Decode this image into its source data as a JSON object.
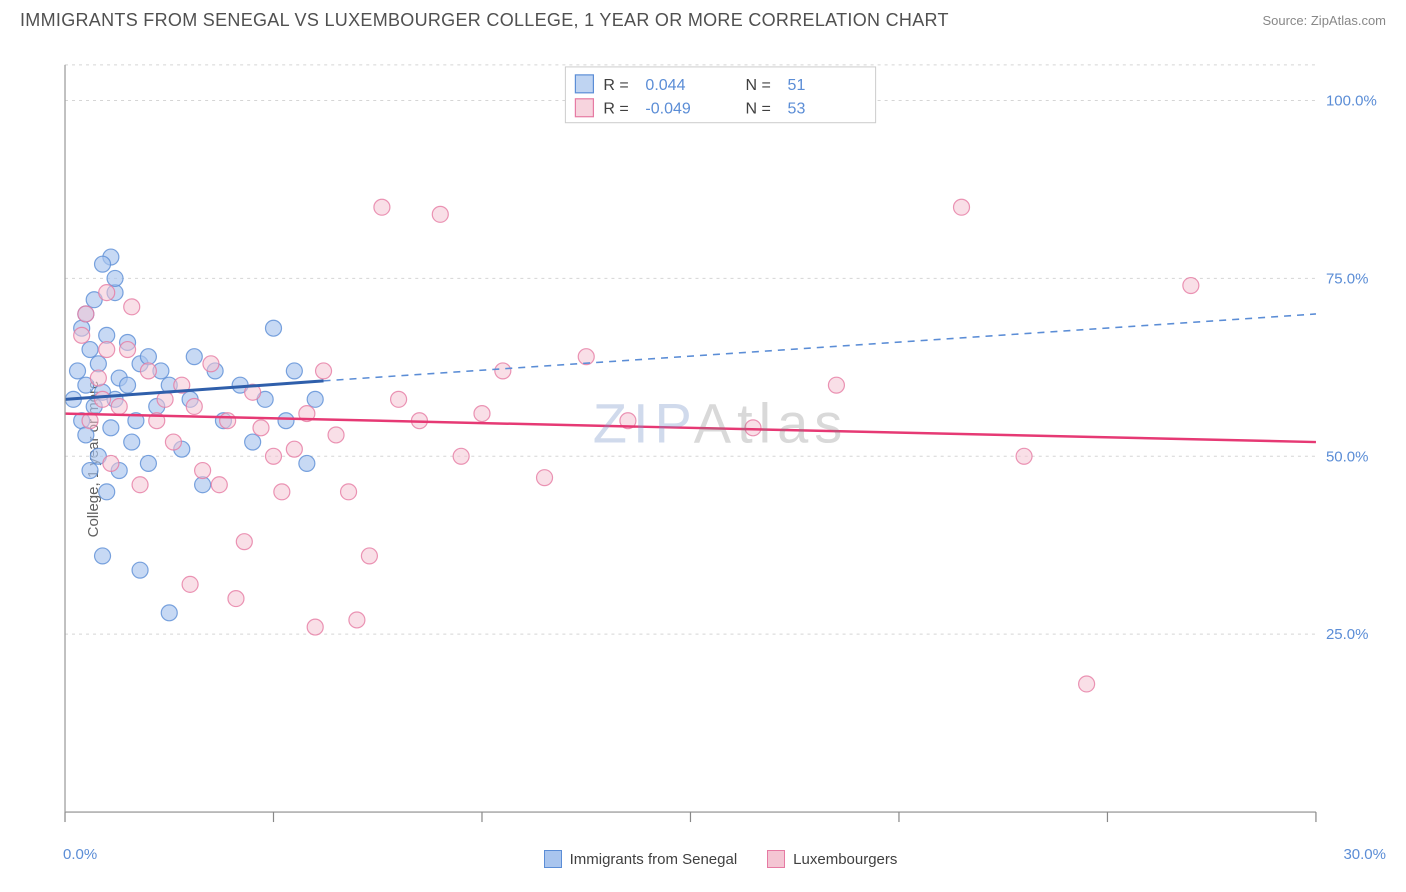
{
  "header": {
    "title": "IMMIGRANTS FROM SENEGAL VS LUXEMBOURGER COLLEGE, 1 YEAR OR MORE CORRELATION CHART",
    "source": "Source: ZipAtlas.com"
  },
  "chart": {
    "type": "scatter",
    "ylabel": "College, 1 year or more",
    "watermark": "ZIPAtlas",
    "background_color": "#ffffff",
    "grid_color": "#d5d5d5",
    "axis_color": "#a0a0a0",
    "tick_color": "#888888",
    "xlim": [
      0,
      30
    ],
    "ylim": [
      0,
      105
    ],
    "x_ticks": [
      0,
      5,
      10,
      15,
      20,
      25,
      30
    ],
    "y_gridlines": [
      25,
      50,
      75,
      100
    ],
    "x_labels": [
      {
        "value": 0,
        "label": "0.0%"
      },
      {
        "value": 30,
        "label": "30.0%"
      }
    ],
    "y_labels": [
      {
        "value": 25,
        "label": "25.0%"
      },
      {
        "value": 50,
        "label": "50.0%"
      },
      {
        "value": 75,
        "label": "75.0%"
      },
      {
        "value": 100,
        "label": "100.0%"
      }
    ],
    "axis_label_color": "#5b8dd6",
    "series": [
      {
        "name": "Immigrants from Senegal",
        "marker_fill": "#a9c5ee",
        "marker_stroke": "#5b8dd6",
        "marker_opacity": 0.65,
        "marker_radius": 8,
        "line_color": "#2f5fab",
        "line_dash_color": "#5b8dd6",
        "R": "0.044",
        "N": "51",
        "points": [
          [
            0.2,
            58
          ],
          [
            0.3,
            62
          ],
          [
            0.4,
            68
          ],
          [
            0.4,
            55
          ],
          [
            0.5,
            60
          ],
          [
            0.5,
            70
          ],
          [
            0.5,
            53
          ],
          [
            0.6,
            65
          ],
          [
            0.6,
            48
          ],
          [
            0.7,
            57
          ],
          [
            0.7,
            72
          ],
          [
            0.8,
            63
          ],
          [
            0.8,
            50
          ],
          [
            0.9,
            36
          ],
          [
            0.9,
            59
          ],
          [
            1.0,
            67
          ],
          [
            1.0,
            45
          ],
          [
            1.1,
            78
          ],
          [
            1.1,
            54
          ],
          [
            1.2,
            58
          ],
          [
            1.2,
            73
          ],
          [
            1.3,
            61
          ],
          [
            1.3,
            48
          ],
          [
            1.5,
            60
          ],
          [
            1.5,
            66
          ],
          [
            1.6,
            52
          ],
          [
            1.7,
            55
          ],
          [
            1.8,
            34
          ],
          [
            1.8,
            63
          ],
          [
            2.0,
            64
          ],
          [
            2.0,
            49
          ],
          [
            2.2,
            57
          ],
          [
            2.3,
            62
          ],
          [
            2.5,
            60
          ],
          [
            2.5,
            28
          ],
          [
            2.8,
            51
          ],
          [
            3.0,
            58
          ],
          [
            3.1,
            64
          ],
          [
            3.3,
            46
          ],
          [
            3.6,
            62
          ],
          [
            3.8,
            55
          ],
          [
            4.2,
            60
          ],
          [
            4.5,
            52
          ],
          [
            4.8,
            58
          ],
          [
            5.0,
            68
          ],
          [
            5.3,
            55
          ],
          [
            5.5,
            62
          ],
          [
            5.8,
            49
          ],
          [
            6.0,
            58
          ],
          [
            0.9,
            77
          ],
          [
            1.2,
            75
          ]
        ],
        "trend": {
          "x1": 0,
          "y1": 58,
          "x2": 6.2,
          "y2": 60.6,
          "dash_x2": 30,
          "dash_y2": 70
        }
      },
      {
        "name": "Luxembourgers",
        "marker_fill": "#f4c5d3",
        "marker_stroke": "#e67aa3",
        "marker_opacity": 0.55,
        "marker_radius": 8,
        "line_color": "#e63974",
        "R": "-0.049",
        "N": "53",
        "points": [
          [
            0.4,
            67
          ],
          [
            0.5,
            70
          ],
          [
            0.6,
            55
          ],
          [
            0.8,
            61
          ],
          [
            0.9,
            58
          ],
          [
            1.0,
            65
          ],
          [
            1.1,
            49
          ],
          [
            1.3,
            57
          ],
          [
            1.5,
            65
          ],
          [
            1.6,
            71
          ],
          [
            1.8,
            46
          ],
          [
            2.0,
            62
          ],
          [
            2.2,
            55
          ],
          [
            2.4,
            58
          ],
          [
            2.6,
            52
          ],
          [
            2.8,
            60
          ],
          [
            3.0,
            32
          ],
          [
            3.1,
            57
          ],
          [
            3.3,
            48
          ],
          [
            3.5,
            63
          ],
          [
            3.7,
            46
          ],
          [
            3.9,
            55
          ],
          [
            4.1,
            30
          ],
          [
            4.3,
            38
          ],
          [
            4.5,
            59
          ],
          [
            4.7,
            54
          ],
          [
            5.0,
            50
          ],
          [
            5.2,
            45
          ],
          [
            5.5,
            51
          ],
          [
            5.8,
            56
          ],
          [
            6.0,
            26
          ],
          [
            6.2,
            62
          ],
          [
            6.5,
            53
          ],
          [
            6.8,
            45
          ],
          [
            7.0,
            27
          ],
          [
            7.3,
            36
          ],
          [
            7.6,
            85
          ],
          [
            8.0,
            58
          ],
          [
            8.5,
            55
          ],
          [
            9.0,
            84
          ],
          [
            9.5,
            50
          ],
          [
            10.0,
            56
          ],
          [
            10.5,
            62
          ],
          [
            11.5,
            47
          ],
          [
            12.5,
            64
          ],
          [
            13.5,
            55
          ],
          [
            16.5,
            54
          ],
          [
            18.5,
            60
          ],
          [
            21.5,
            85
          ],
          [
            23.0,
            50
          ],
          [
            24.5,
            18
          ],
          [
            27.0,
            74
          ],
          [
            1.0,
            73
          ]
        ],
        "trend": {
          "x1": 0,
          "y1": 56,
          "x2": 30,
          "y2": 52
        }
      }
    ],
    "bottom_legend": [
      {
        "label": "Immigrants from Senegal",
        "fill": "#a9c5ee",
        "stroke": "#5b8dd6"
      },
      {
        "label": "Luxembourgers",
        "fill": "#f4c5d3",
        "stroke": "#e67aa3"
      }
    ],
    "top_legend": {
      "R_label": "R =",
      "N_label": "N ="
    }
  }
}
